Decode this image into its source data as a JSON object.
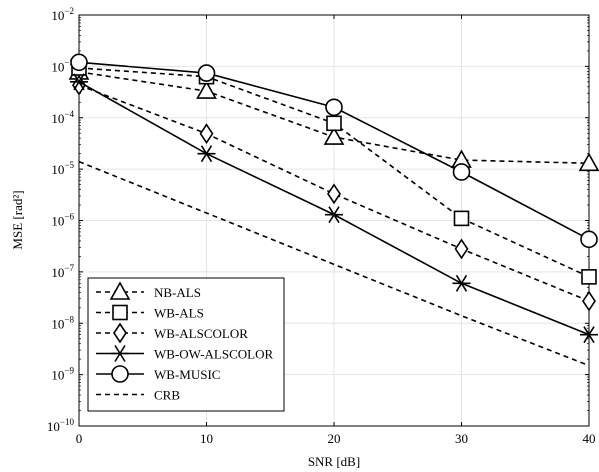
{
  "chart_data": {
    "type": "line",
    "xlabel": "SNR [dB]",
    "ylabel": "MSE [rad²]",
    "x": [
      0,
      10,
      20,
      30,
      40
    ],
    "xlim": [
      0,
      40
    ],
    "ylim": [
      1e-10,
      0.01
    ],
    "y_scale": "log",
    "grid": true,
    "legend_position": "bottom-left",
    "x_tick_labels": [
      "0",
      "10",
      "20",
      "30",
      "40"
    ],
    "y_ticks": [
      {
        "base": "10",
        "exp": "−2",
        "value": 0.01
      },
      {
        "base": "10",
        "exp": "−3",
        "value": 0.001
      },
      {
        "base": "10",
        "exp": "−4",
        "value": 0.0001
      },
      {
        "base": "10",
        "exp": "−5",
        "value": 1e-05
      },
      {
        "base": "10",
        "exp": "−6",
        "value": 1e-06
      },
      {
        "base": "10",
        "exp": "−7",
        "value": 1e-07
      },
      {
        "base": "10",
        "exp": "−8",
        "value": 1e-08
      },
      {
        "base": "10",
        "exp": "−9",
        "value": 1e-09
      },
      {
        "base": "10",
        "exp": "−10",
        "value": 1e-10
      }
    ],
    "series": [
      {
        "name": "NB-ALS",
        "marker": "triangle",
        "dash": "dashed",
        "values": [
          0.00078,
          0.00033,
          4.2e-05,
          1.5e-05,
          1.3e-05
        ]
      },
      {
        "name": "WB-ALS",
        "marker": "square",
        "dash": "dashed",
        "values": [
          0.00093,
          0.00063,
          7.8e-05,
          1.1e-06,
          8e-08
        ]
      },
      {
        "name": "WB-ALSCOLOR",
        "marker": "diamond",
        "dash": "dashed",
        "values": [
          0.00043,
          4.9e-05,
          3.3e-06,
          2.8e-07,
          2.7e-08
        ]
      },
      {
        "name": "WB-OW-ALSCOLOR",
        "marker": "asterisk",
        "dash": "solid",
        "values": [
          0.0005,
          2e-05,
          1.3e-06,
          6e-08,
          6e-09
        ]
      },
      {
        "name": "WB-MUSIC",
        "marker": "circle",
        "dash": "solid",
        "values": [
          0.0012,
          0.00074,
          0.00016,
          8.8e-06,
          4.3e-07
        ]
      },
      {
        "name": "CRB",
        "marker": "none",
        "dash": "dashed",
        "values": [
          1.4e-05,
          1.4e-06,
          1.4e-07,
          1.4e-08,
          1.5e-09
        ]
      }
    ]
  }
}
